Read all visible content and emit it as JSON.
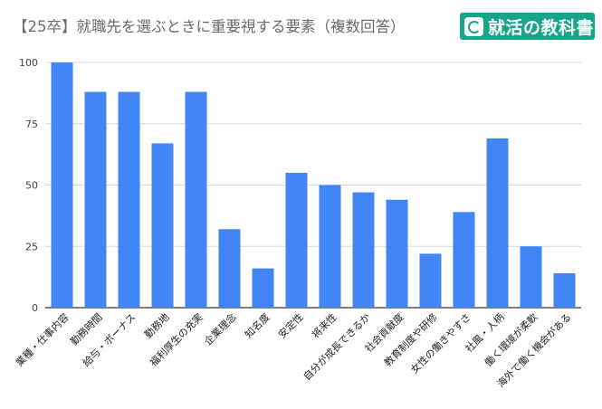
{
  "header": {
    "title": "【25卒】就職先を選ぶときに重要視する要素（複数回答）",
    "logo_text": "就活の教科書",
    "logo_icon": "speech-bubble-check-icon"
  },
  "colors": {
    "bar": "#4285f4",
    "grid": "#d9d9d9",
    "axis": "#333333",
    "brand": "#17a589"
  },
  "chart_data": {
    "type": "bar",
    "title": "【25卒】就職先を選ぶときに重要視する要素（複数回答）",
    "xlabel": "",
    "ylabel": "",
    "ylim": [
      0,
      100
    ],
    "yticks": [
      0,
      25,
      50,
      75,
      100
    ],
    "grid": true,
    "legend": "none",
    "categories": [
      "業種・仕事内容",
      "勤務時間",
      "給与・ボーナス",
      "勤務地",
      "福利厚生の充実",
      "企業理念",
      "知名度",
      "安定性",
      "将来性",
      "自分が成長できるか",
      "社会貢献度",
      "教育制度や研修",
      "女性の働きやすさ",
      "社風・人柄",
      "働く環境が柔軟",
      "海外で働く機会がある"
    ],
    "values": [
      100,
      88,
      88,
      67,
      88,
      32,
      16,
      55,
      50,
      47,
      44,
      22,
      39,
      69,
      25,
      14
    ]
  }
}
